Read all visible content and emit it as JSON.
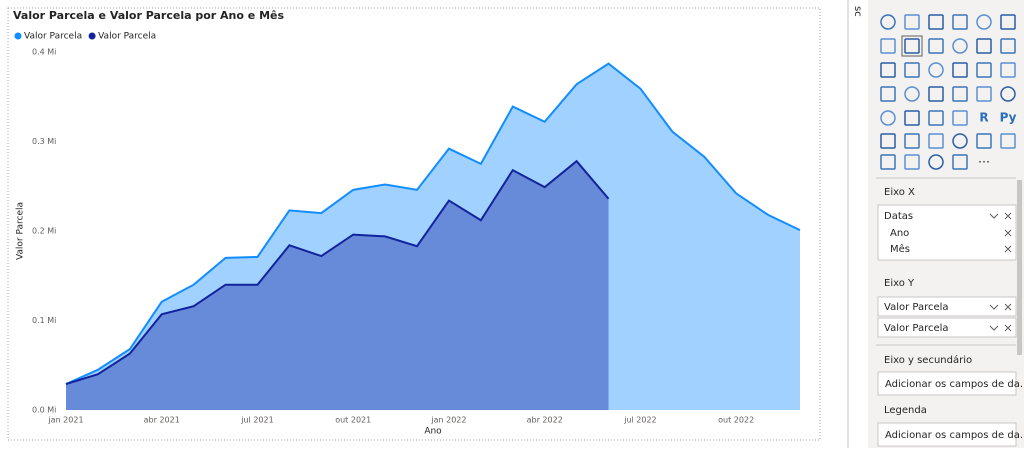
{
  "chart_data": {
    "type": "area",
    "title": "Valor Parcela e Valor Parcela por Ano e Mês",
    "x_label": "Ano",
    "y_label": "Valor Parcela",
    "categories": [
      "jan 2021",
      null,
      null,
      "abr 2021",
      null,
      null,
      "jul 2021",
      null,
      null,
      "out 2021",
      null,
      null,
      "jan 2022",
      null,
      null,
      "abr 2022",
      null,
      null,
      "jul 2022",
      null,
      null,
      "out 2022",
      null,
      null
    ],
    "series": [
      {
        "name": "Valor Parcela",
        "color": "#118dff",
        "values": [
          0.029,
          0.045,
          0.068,
          0.121,
          0.14,
          0.17,
          0.171,
          0.223,
          0.22,
          0.246,
          0.252,
          0.246,
          0.292,
          0.275,
          0.339,
          0.322,
          0.364,
          0.387,
          0.359,
          0.311,
          0.283,
          0.242,
          0.218,
          0.201
        ]
      },
      {
        "name": "Valor Parcela",
        "color": "#12239e",
        "values": [
          0.029,
          0.04,
          0.063,
          0.107,
          0.116,
          0.14,
          0.14,
          0.184,
          0.172,
          0.196,
          0.194,
          0.183,
          0.234,
          0.212,
          0.268,
          0.249,
          0.278,
          0.236,
          null,
          null,
          null,
          null,
          null,
          null
        ]
      }
    ],
    "ylim": [
      0,
      0.4
    ],
    "yticks": [
      {
        "value": 0,
        "label": "0.0 Mi"
      },
      {
        "value": 0.1,
        "label": "0.1 Mi"
      },
      {
        "value": 0.2,
        "label": "0.2 Mi"
      },
      {
        "value": 0.3,
        "label": "0.3 Mi"
      },
      {
        "value": 0.4,
        "label": "0.4 Mi"
      }
    ],
    "grid": false,
    "legend": "top-left"
  },
  "panel": {
    "header": "sc",
    "icons": {
      "r": "R",
      "py": "Py",
      "more": "⋯"
    },
    "x_axis": {
      "label": "Eixo X",
      "field": "Datas",
      "children": [
        "Ano",
        "Mês"
      ]
    },
    "y_axis": {
      "label": "Eixo Y",
      "fields": [
        "Valor Parcela",
        "Valor Parcela"
      ]
    },
    "y2_axis": {
      "label": "Eixo y secundário",
      "placeholder": "Adicionar os campos de da..."
    },
    "legend": {
      "label": "Legenda",
      "placeholder": "Adicionar os campos de da..."
    }
  }
}
